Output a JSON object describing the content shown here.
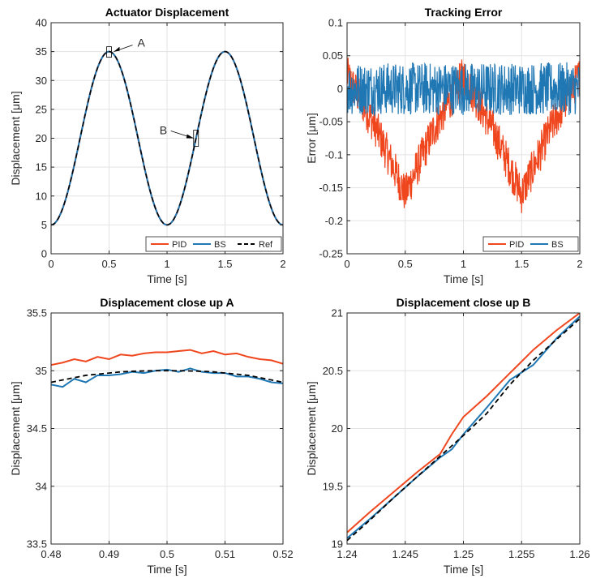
{
  "colors": {
    "pid": "#f0461e",
    "bs": "#1f77b4",
    "ref": "#000000"
  },
  "chart_data": [
    {
      "type": "line",
      "title": "Actuator Displacement",
      "xlabel": "Time [s]",
      "ylabel": "Displacement [μm]",
      "xlim": [
        0,
        2
      ],
      "ylim": [
        0,
        40
      ],
      "xticks": [
        "0",
        "0.5",
        "1",
        "1.5",
        "2"
      ],
      "yticks": [
        "0",
        "5",
        "10",
        "15",
        "20",
        "25",
        "30",
        "35",
        "40"
      ],
      "xtick_values": [
        0,
        0.5,
        1,
        1.5,
        2
      ],
      "ytick_values": [
        0,
        5,
        10,
        15,
        20,
        25,
        30,
        35,
        40
      ],
      "legend": [
        "PID",
        "BS",
        "Ref"
      ],
      "legend_position": "bottom-right",
      "signal": {
        "kind": "sinusoid",
        "offset": 20,
        "amplitude": -15,
        "frequency_hz": 1
      },
      "annotations": [
        {
          "label": "A",
          "x": 0.5,
          "y": 35
        },
        {
          "label": "B",
          "x": 1.25,
          "y": 20
        }
      ]
    },
    {
      "type": "line",
      "title": "Tracking Error",
      "xlabel": "Time [s]",
      "ylabel": "Error [μm]",
      "xlim": [
        0,
        2
      ],
      "ylim": [
        -0.25,
        0.1
      ],
      "xticks": [
        "0",
        "0.5",
        "1",
        "1.5",
        "2"
      ],
      "yticks": [
        "-0.25",
        "-0.2",
        "-0.15",
        "-0.1",
        "-0.05",
        "0",
        "0.05",
        "0.1"
      ],
      "xtick_values": [
        0,
        0.5,
        1,
        1.5,
        2
      ],
      "ytick_values": [
        -0.25,
        -0.2,
        -0.15,
        -0.1,
        -0.05,
        0,
        0.05,
        0.1
      ],
      "legend": [
        "PID",
        "BS"
      ],
      "legend_position": "bottom-right",
      "series": [
        {
          "name": "PID",
          "description": "error dips to about -0.16 near 0.5 s and 1.5 s, noise about ±0.03",
          "trend_x": [
            0,
            0.25,
            0.5,
            0.75,
            1,
            1.25,
            1.5,
            1.75,
            2
          ],
          "trend_y": [
            0.02,
            -0.06,
            -0.16,
            -0.06,
            0.02,
            -0.06,
            -0.16,
            -0.06,
            0.02
          ]
        },
        {
          "name": "BS",
          "description": "error centered at 0 with noise about ±0.04",
          "trend_x": [
            0,
            2
          ],
          "trend_y": [
            0,
            0
          ]
        }
      ]
    },
    {
      "type": "line",
      "title": "Displacement close up A",
      "xlabel": "Time [s]",
      "ylabel": "Displacement [μm]",
      "xlim": [
        0.48,
        0.52
      ],
      "ylim": [
        33.5,
        35.5
      ],
      "xticks": [
        "0.48",
        "0.49",
        "0.5",
        "0.51",
        "0.52"
      ],
      "yticks": [
        "33.5",
        "34",
        "34.5",
        "35",
        "35.5"
      ],
      "xtick_values": [
        0.48,
        0.49,
        0.5,
        0.51,
        0.52
      ],
      "ytick_values": [
        33.5,
        34,
        34.5,
        35,
        35.5
      ],
      "x": [
        0.48,
        0.482,
        0.484,
        0.486,
        0.488,
        0.49,
        0.492,
        0.494,
        0.496,
        0.498,
        0.5,
        0.502,
        0.504,
        0.506,
        0.508,
        0.51,
        0.512,
        0.514,
        0.516,
        0.518,
        0.52
      ],
      "series": [
        {
          "name": "PID",
          "values": [
            35.05,
            35.07,
            35.1,
            35.08,
            35.12,
            35.1,
            35.14,
            35.13,
            35.15,
            35.16,
            35.16,
            35.17,
            35.18,
            35.15,
            35.17,
            35.14,
            35.15,
            35.12,
            35.1,
            35.09,
            35.06
          ]
        },
        {
          "name": "BS",
          "values": [
            34.88,
            34.86,
            34.93,
            34.9,
            34.96,
            34.96,
            34.97,
            34.99,
            34.98,
            35.0,
            35.01,
            34.99,
            35.02,
            34.99,
            34.98,
            34.98,
            34.95,
            34.95,
            34.93,
            34.9,
            34.89
          ]
        },
        {
          "name": "Ref",
          "values": [
            34.9,
            34.92,
            34.94,
            34.96,
            34.97,
            34.98,
            34.99,
            34.995,
            34.998,
            35.0,
            35.0,
            35.0,
            34.998,
            34.995,
            34.99,
            34.98,
            34.97,
            34.96,
            34.94,
            34.92,
            34.9
          ]
        }
      ]
    },
    {
      "type": "line",
      "title": "Displacement close up B",
      "xlabel": "Time [s]",
      "ylabel": "Displacement [μm]",
      "xlim": [
        1.24,
        1.26
      ],
      "ylim": [
        19,
        21
      ],
      "xticks": [
        "1.24",
        "1.245",
        "1.25",
        "1.255",
        "1.26"
      ],
      "yticks": [
        "19",
        "19.5",
        "20",
        "20.5",
        "21"
      ],
      "xtick_values": [
        1.24,
        1.245,
        1.25,
        1.255,
        1.26
      ],
      "ytick_values": [
        19,
        19.5,
        20,
        20.5,
        21
      ],
      "x": [
        1.24,
        1.242,
        1.244,
        1.246,
        1.248,
        1.249,
        1.25,
        1.252,
        1.254,
        1.256,
        1.258,
        1.26
      ],
      "series": [
        {
          "name": "PID",
          "values": [
            19.1,
            19.28,
            19.45,
            19.62,
            19.78,
            19.95,
            20.1,
            20.28,
            20.48,
            20.68,
            20.85,
            21.0
          ]
        },
        {
          "name": "BS",
          "values": [
            19.05,
            19.22,
            19.4,
            19.58,
            19.75,
            19.82,
            19.95,
            20.18,
            20.42,
            20.55,
            20.78,
            20.97
          ]
        },
        {
          "name": "Ref",
          "values": [
            19.03,
            19.21,
            19.4,
            19.58,
            19.76,
            19.85,
            19.94,
            20.13,
            20.38,
            20.59,
            20.77,
            20.95
          ]
        }
      ]
    }
  ]
}
